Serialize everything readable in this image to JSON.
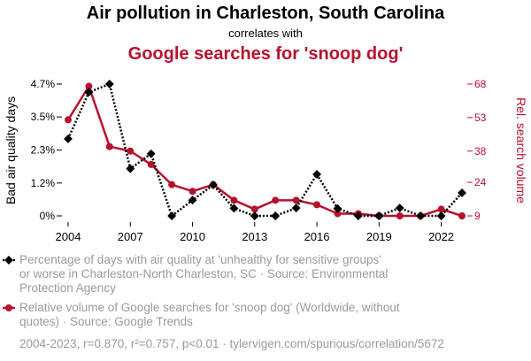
{
  "chart_data": {
    "type": "line",
    "title": "Air pollution in Charleston, South Carolina",
    "subtitle": "correlates with",
    "title2": "Google searches for 'snoop dog'",
    "x": [
      2004,
      2005,
      2006,
      2007,
      2008,
      2009,
      2010,
      2011,
      2012,
      2013,
      2014,
      2015,
      2016,
      2017,
      2018,
      2019,
      2020,
      2021,
      2022,
      2023
    ],
    "x_ticks": [
      2004,
      2007,
      2010,
      2013,
      2016,
      2019,
      2022
    ],
    "series": [
      {
        "name": "Percentage of days with air quality at 'unhealthy for sensitive groups' or worse in Charleston-North Charleston, SC · Source: Environmental Protection Agency",
        "axis": "left",
        "color": "#000000",
        "values": [
          2.74,
          4.4,
          4.69,
          1.68,
          2.21,
          0.0,
          0.56,
          1.1,
          0.27,
          0.0,
          0.0,
          0.28,
          1.48,
          0.26,
          0.0,
          0.0,
          0.28,
          0.0,
          0.0,
          0.82
        ]
      },
      {
        "name": "Relative volume of Google searches for 'snoop dog' (Worldwide, without quotes) · Source: Google Trends",
        "axis": "right",
        "color": "#b5122e",
        "values": [
          52,
          67,
          40,
          38,
          32,
          23,
          20,
          23,
          16,
          12,
          16,
          16,
          14,
          10,
          10,
          9,
          9,
          9,
          12,
          9
        ]
      }
    ],
    "y_left": {
      "label": "Bad air quality days",
      "ticks": [
        "0%",
        "1.2%",
        "2.3%",
        "3.5%",
        "4.7%"
      ],
      "tick_values": [
        0,
        1.17,
        2.34,
        3.52,
        4.69
      ],
      "range": [
        0,
        4.69
      ]
    },
    "y_right": {
      "label": "Rel. search volume",
      "ticks": [
        "9",
        "24",
        "38",
        "53",
        "68"
      ],
      "tick_values": [
        9,
        24,
        38,
        53,
        68
      ],
      "range": [
        9,
        68
      ]
    },
    "legend": [
      {
        "lines": [
          "Percentage of days with air quality at 'unhealthy for sensitive groups'",
          "or worse in Charleston-North Charleston, SC · Source: Environmental",
          "Protection Agency"
        ]
      },
      {
        "lines": [
          "Relative volume of Google searches for 'snoop dog' (Worldwide, without",
          "quotes) · Source: Google Trends"
        ]
      }
    ],
    "footer": "2004-2023, r=0.870, r²=0.757, p<0.01 · tylervigen.com/spurious/correlation/5672"
  }
}
